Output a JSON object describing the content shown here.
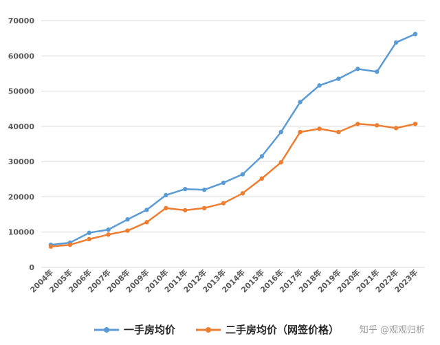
{
  "chart_data": {
    "type": "line",
    "title": "",
    "xlabel": "",
    "ylabel": "",
    "x": [
      "2004年",
      "2005年",
      "2006年",
      "2007年",
      "2008年",
      "2009年",
      "2010年",
      "2011年",
      "2012年",
      "2013年",
      "2014年",
      "2015年",
      "2016年",
      "2017年",
      "2018年",
      "2019年",
      "2020年",
      "2021年",
      "2022年",
      "2023年"
    ],
    "y_ticks": [
      "0",
      "10000",
      "20000",
      "30000",
      "40000",
      "50000",
      "60000",
      "70000"
    ],
    "ylim": [
      0,
      70000
    ],
    "grid": true,
    "legend_position": "bottom",
    "series": [
      {
        "name": "一手房均价",
        "color": "#5b9bd5",
        "values": [
          6400,
          7000,
          9800,
          10700,
          13600,
          16300,
          20500,
          22200,
          22000,
          24000,
          26400,
          31500,
          38400,
          46900,
          51600,
          53500,
          56300,
          55500,
          63800,
          66200
        ]
      },
      {
        "name": "二手房均价（网签价格）",
        "color": "#ed7d31",
        "values": [
          5900,
          6400,
          8000,
          9300,
          10400,
          12800,
          16800,
          16200,
          16800,
          18200,
          21000,
          25200,
          29800,
          38400,
          39300,
          38400,
          40700,
          40300,
          39500,
          40700
        ]
      }
    ]
  },
  "watermark": "知乎 @观观归析"
}
